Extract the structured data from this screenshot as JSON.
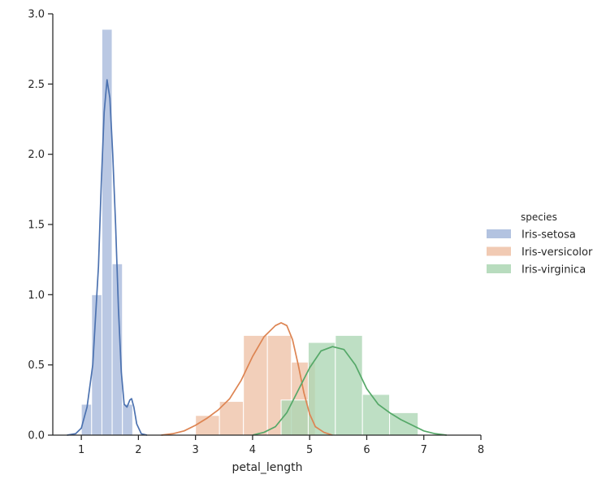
{
  "chart_data": {
    "type": "histogram_kde",
    "title": "",
    "xlabel": "petal_length",
    "ylabel": "",
    "xlim": [
      0.5,
      8.0
    ],
    "ylim": [
      0,
      3.0
    ],
    "xticks": [
      1,
      2,
      3,
      4,
      5,
      6,
      7,
      8
    ],
    "yticks": [
      0.0,
      0.5,
      1.0,
      1.5,
      2.0,
      2.5,
      3.0
    ],
    "grid": false,
    "legend": {
      "title": "species",
      "position": "right"
    },
    "series": [
      {
        "name": "Iris-setosa",
        "bar_color": "#a6b9db",
        "line_color": "#4c72b0",
        "bins": [
          {
            "x0": 1.0,
            "x1": 1.18,
            "density": 0.22
          },
          {
            "x0": 1.18,
            "x1": 1.36,
            "density": 1.0
          },
          {
            "x0": 1.36,
            "x1": 1.54,
            "density": 2.89
          },
          {
            "x0": 1.54,
            "x1": 1.72,
            "density": 1.22
          },
          {
            "x0": 1.72,
            "x1": 1.9,
            "density": 0.22
          }
        ],
        "kde": [
          [
            0.75,
            0.0
          ],
          [
            0.9,
            0.01
          ],
          [
            1.0,
            0.05
          ],
          [
            1.1,
            0.2
          ],
          [
            1.2,
            0.5
          ],
          [
            1.3,
            1.2
          ],
          [
            1.35,
            1.8
          ],
          [
            1.4,
            2.3
          ],
          [
            1.45,
            2.53
          ],
          [
            1.5,
            2.4
          ],
          [
            1.55,
            2.0
          ],
          [
            1.6,
            1.5
          ],
          [
            1.65,
            0.9
          ],
          [
            1.7,
            0.45
          ],
          [
            1.75,
            0.22
          ],
          [
            1.8,
            0.2
          ],
          [
            1.85,
            0.25
          ],
          [
            1.88,
            0.26
          ],
          [
            1.92,
            0.2
          ],
          [
            1.97,
            0.08
          ],
          [
            2.05,
            0.01
          ],
          [
            2.15,
            0.0
          ]
        ]
      },
      {
        "name": "Iris-versicolor",
        "bar_color": "#eec1a6",
        "line_color": "#dd8452",
        "bins": [
          {
            "x0": 3.0,
            "x1": 3.42,
            "density": 0.14
          },
          {
            "x0": 3.42,
            "x1": 3.84,
            "density": 0.24
          },
          {
            "x0": 3.84,
            "x1": 4.26,
            "density": 0.71
          },
          {
            "x0": 4.26,
            "x1": 4.68,
            "density": 0.71
          },
          {
            "x0": 4.68,
            "x1": 5.1,
            "density": 0.52
          }
        ],
        "kde": [
          [
            2.4,
            0.0
          ],
          [
            2.6,
            0.01
          ],
          [
            2.8,
            0.03
          ],
          [
            3.0,
            0.07
          ],
          [
            3.2,
            0.12
          ],
          [
            3.4,
            0.18
          ],
          [
            3.6,
            0.26
          ],
          [
            3.8,
            0.39
          ],
          [
            4.0,
            0.56
          ],
          [
            4.2,
            0.7
          ],
          [
            4.4,
            0.78
          ],
          [
            4.5,
            0.8
          ],
          [
            4.6,
            0.78
          ],
          [
            4.7,
            0.68
          ],
          [
            4.8,
            0.5
          ],
          [
            4.9,
            0.3
          ],
          [
            5.0,
            0.15
          ],
          [
            5.1,
            0.06
          ],
          [
            5.25,
            0.02
          ],
          [
            5.4,
            0.0
          ]
        ]
      },
      {
        "name": "Iris-virginica",
        "bar_color": "#acd6b3",
        "line_color": "#55a868",
        "bins": [
          {
            "x0": 4.5,
            "x1": 4.975,
            "density": 0.25
          },
          {
            "x0": 4.975,
            "x1": 5.45,
            "density": 0.66
          },
          {
            "x0": 5.45,
            "x1": 5.925,
            "density": 0.71
          },
          {
            "x0": 5.925,
            "x1": 6.4,
            "density": 0.29
          },
          {
            "x0": 6.4,
            "x1": 6.9,
            "density": 0.16
          }
        ],
        "kde": [
          [
            4.0,
            0.0
          ],
          [
            4.2,
            0.02
          ],
          [
            4.4,
            0.06
          ],
          [
            4.6,
            0.16
          ],
          [
            4.8,
            0.32
          ],
          [
            5.0,
            0.48
          ],
          [
            5.2,
            0.6
          ],
          [
            5.4,
            0.63
          ],
          [
            5.6,
            0.61
          ],
          [
            5.8,
            0.5
          ],
          [
            6.0,
            0.33
          ],
          [
            6.2,
            0.22
          ],
          [
            6.4,
            0.16
          ],
          [
            6.6,
            0.11
          ],
          [
            6.8,
            0.07
          ],
          [
            7.0,
            0.03
          ],
          [
            7.2,
            0.01
          ],
          [
            7.4,
            0.0
          ]
        ]
      }
    ]
  }
}
